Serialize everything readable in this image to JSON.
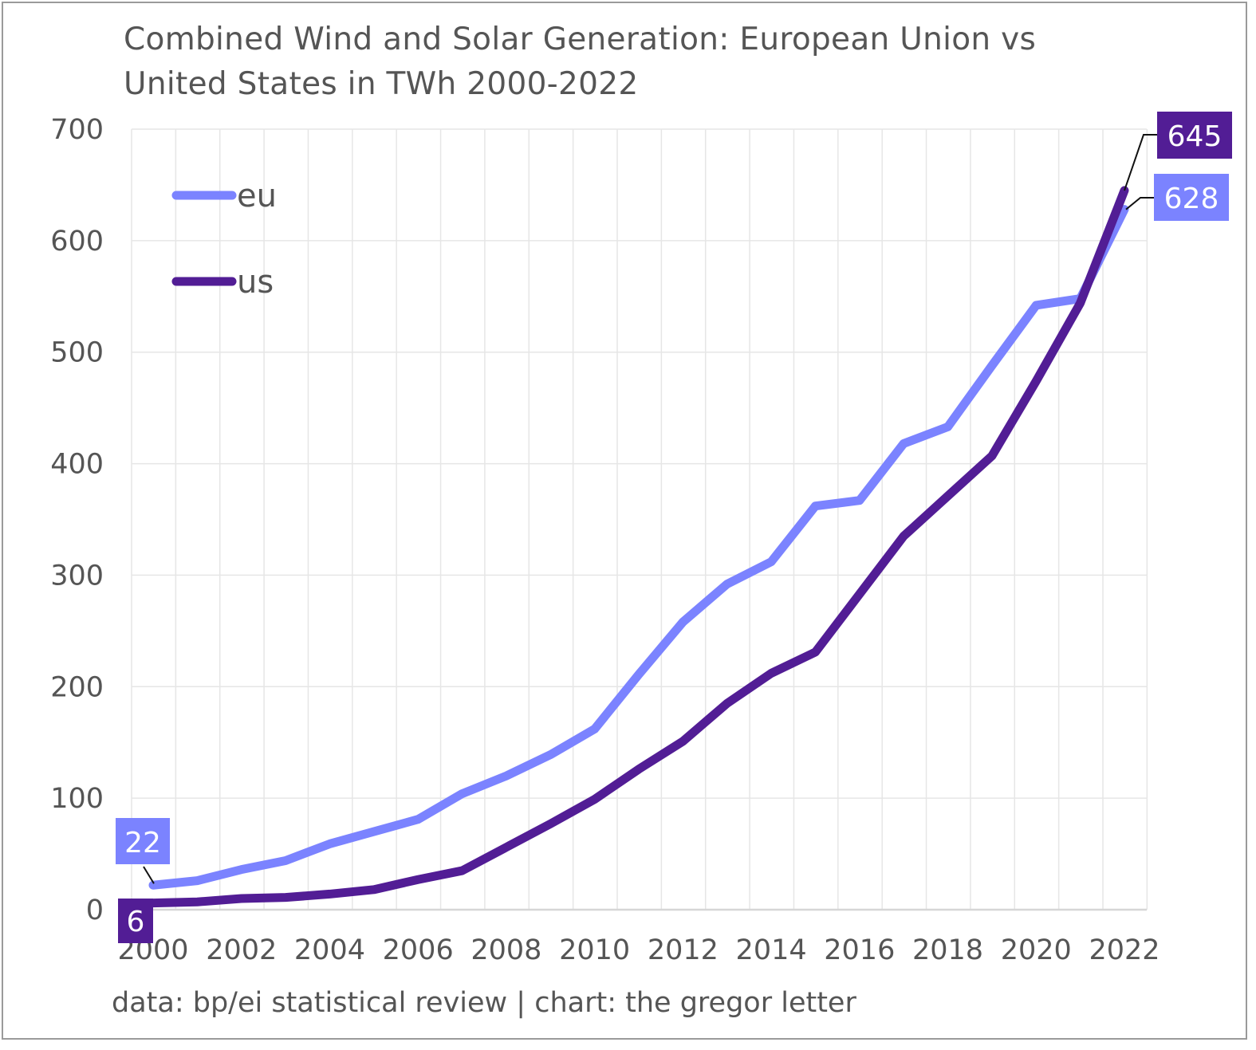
{
  "chart_data": {
    "type": "line",
    "title": "Combined Wind and Solar Generation: European Union vs United States in TWh 2000-2022",
    "title_lines": [
      "Combined Wind and Solar Generation: European Union vs",
      "United States in TWh 2000-2022"
    ],
    "xlabel": "",
    "ylabel": "",
    "x": [
      2000,
      2001,
      2002,
      2003,
      2004,
      2005,
      2006,
      2007,
      2008,
      2009,
      2010,
      2011,
      2012,
      2013,
      2014,
      2015,
      2016,
      2017,
      2018,
      2019,
      2020,
      2021,
      2022
    ],
    "x_tick_labels": [
      "2000",
      "2002",
      "2004",
      "2006",
      "2008",
      "2010",
      "2012",
      "2014",
      "2016",
      "2018",
      "2020",
      "2022"
    ],
    "y_tick_labels": [
      "0",
      "100",
      "200",
      "300",
      "400",
      "500",
      "600",
      "700"
    ],
    "ylim": [
      0,
      700
    ],
    "grid": true,
    "legend_position": "top-left",
    "series": [
      {
        "name": "eu",
        "color": "#7b83ff",
        "values": [
          22,
          26,
          36,
          44,
          59,
          70,
          81,
          104,
          120,
          139,
          162,
          211,
          258,
          292,
          312,
          362,
          367,
          418,
          433,
          488,
          542,
          548,
          628
        ],
        "start_label": "22",
        "end_label": "628"
      },
      {
        "name": "us",
        "color": "#521d95",
        "values": [
          6,
          7,
          10,
          11,
          14,
          18,
          27,
          35,
          56,
          77,
          99,
          126,
          151,
          185,
          212,
          231,
          283,
          335,
          371,
          407,
          474,
          544,
          645
        ],
        "start_label": "6",
        "end_label": "645"
      }
    ],
    "source": "data: bp/ei statistical review | chart: the gregor letter"
  }
}
